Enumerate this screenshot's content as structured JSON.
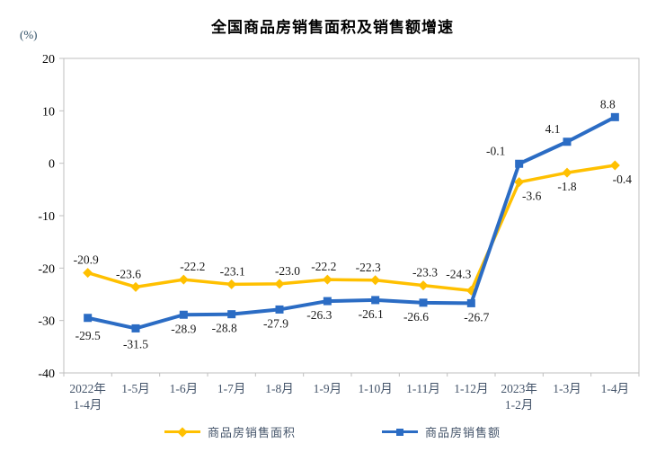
{
  "page": {
    "background": "#FFFFFF"
  },
  "chart_data": {
    "type": "line",
    "title": "全国商品房销售面积及销售额增速",
    "unit_label": "(%)",
    "categories": [
      "2022年\n1-4月",
      "1-5月",
      "1-6月",
      "1-7月",
      "1-8月",
      "1-9月",
      "1-10月",
      "1-11月",
      "1-12月",
      "2023年\n1-2月",
      "1-3月",
      "1-4月"
    ],
    "ylim": [
      -40,
      20
    ],
    "yticks": [
      20,
      10,
      0,
      -10,
      -20,
      -30,
      -40
    ],
    "grid": false,
    "legend_position": "bottom",
    "axis_color": "#BFBFBF",
    "ytick_label_color": "#000000",
    "xtick_label_color": "#44546A",
    "data_label_color": "#1A1A1A",
    "series": [
      {
        "name": "商品房销售面积",
        "color": "#FFC000",
        "marker": "diamond",
        "line_width": 3.5,
        "values": [
          -20.9,
          -23.6,
          -22.2,
          -23.1,
          -23.0,
          -22.2,
          -22.3,
          -23.3,
          -24.3,
          -3.6,
          -1.8,
          -0.4
        ],
        "labels": [
          "-20.9",
          "-23.6",
          "-22.2",
          "-23.1",
          "-23.0",
          "-22.2",
          "-22.3",
          "-23.3",
          "-24.3",
          "-3.6",
          "-1.8",
          "-0.4"
        ],
        "label_side": [
          "above",
          "above",
          "above",
          "above",
          "above",
          "above",
          "above",
          "above",
          "above",
          "below",
          "below",
          "below"
        ],
        "label_dx": [
          -2,
          -8,
          10,
          1,
          9,
          -4,
          -8,
          2,
          -14,
          14,
          0,
          8
        ],
        "label_dy": [
          0,
          0,
          0,
          0,
          0,
          0,
          0,
          0,
          -4,
          0,
          0,
          0
        ]
      },
      {
        "name": "商品房销售额",
        "color": "#2B6CC4",
        "marker": "square",
        "line_width": 4,
        "values": [
          -29.5,
          -31.5,
          -28.9,
          -28.8,
          -27.9,
          -26.3,
          -26.1,
          -26.6,
          -26.7,
          -0.1,
          4.1,
          8.8
        ],
        "labels": [
          "-29.5",
          "-31.5",
          "-28.9",
          "-28.8",
          "-27.9",
          "-26.3",
          "-26.1",
          "-26.6",
          "-26.7",
          "-0.1",
          "4.1",
          "8.8"
        ],
        "label_side": [
          "below",
          "below",
          "below",
          "below",
          "below",
          "below",
          "below",
          "below",
          "below",
          "above",
          "above",
          "above"
        ],
        "label_dx": [
          0,
          0,
          0,
          -8,
          -4,
          -9,
          -5,
          -8,
          6,
          -26,
          -16,
          -8
        ],
        "label_dy": [
          4,
          2,
          0,
          0,
          0,
          0,
          0,
          0,
          0,
          0,
          0,
          0
        ]
      }
    ]
  }
}
